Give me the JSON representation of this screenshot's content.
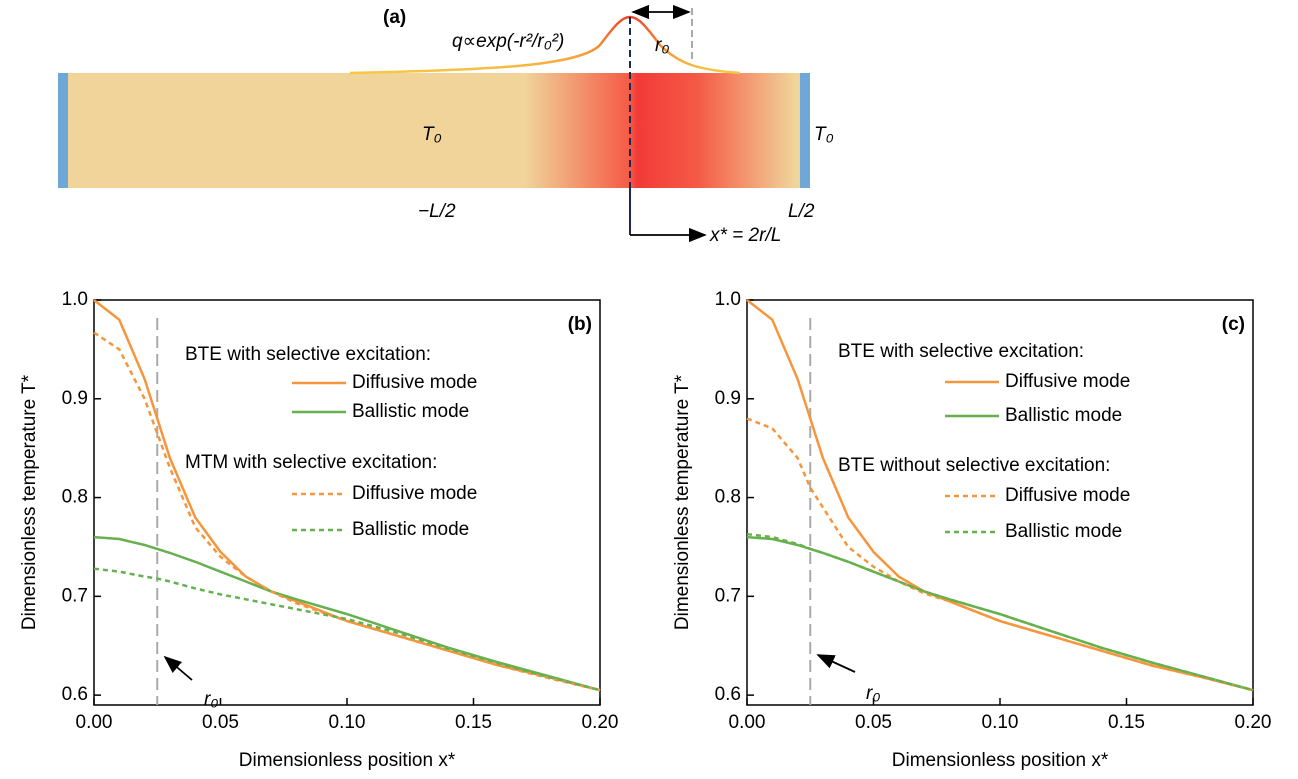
{
  "diagram": {
    "panel": "(a)",
    "heat_source": "q∝exp(-r²/r₀²)",
    "radius": "r₀",
    "left_temp": "T₀",
    "right_temp": "T₀",
    "left_end": "−L/2",
    "right_end": "L/2",
    "axis": "x* = 2r/L"
  },
  "chart_data": [
    {
      "type": "line",
      "panel": "(b)",
      "xlabel": "Dimensionless position x*",
      "ylabel": "Dimensionless temperature T*",
      "xlim": [
        0,
        0.2
      ],
      "ylim": [
        0.59,
        1.0
      ],
      "xticks": [
        {
          "value": 0,
          "label": "0.00"
        },
        0.05,
        {
          "value": 0.1,
          "label": "0.10"
        },
        0.15,
        {
          "value": 0.2,
          "label": "0.20"
        }
      ],
      "yticks": [
        0.6,
        0.7,
        0.8,
        0.9,
        {
          "value": 1,
          "label": "1.0"
        }
      ],
      "vline": {
        "x": 0.025,
        "label": "r₀"
      },
      "legend_headings": [
        "BTE with selective excitation:",
        "MTM with selective excitation:"
      ],
      "x": [
        0,
        0.01,
        0.02,
        0.025,
        0.03,
        0.04,
        0.05,
        0.06,
        0.07,
        0.08,
        0.1,
        0.12,
        0.14,
        0.16,
        0.18,
        0.2
      ],
      "series": [
        {
          "name": "Diffusive mode",
          "color": "#f5963c",
          "dash": false,
          "values": [
            1.0,
            0.98,
            0.92,
            0.88,
            0.84,
            0.78,
            0.745,
            0.72,
            0.705,
            0.695,
            0.675,
            0.66,
            0.645,
            0.63,
            0.618,
            0.605
          ]
        },
        {
          "name": "Ballistic mode",
          "color": "#66b04f",
          "dash": false,
          "values": [
            0.76,
            0.758,
            0.752,
            0.748,
            0.744,
            0.735,
            0.725,
            0.715,
            0.705,
            0.697,
            0.682,
            0.665,
            0.648,
            0.633,
            0.619,
            0.605
          ]
        },
        {
          "name": "Diffusive mode",
          "color": "#f5963c",
          "dash": true,
          "values": [
            0.967,
            0.95,
            0.9,
            0.865,
            0.83,
            0.77,
            0.74,
            0.72,
            0.705,
            0.693,
            0.675,
            0.66,
            0.645,
            0.63,
            0.617,
            0.605
          ]
        },
        {
          "name": "Ballistic mode",
          "color": "#66b04f",
          "dash": true,
          "values": [
            0.728,
            0.725,
            0.72,
            0.718,
            0.715,
            0.708,
            0.702,
            0.697,
            0.692,
            0.687,
            0.677,
            0.663,
            0.647,
            0.632,
            0.618,
            0.605
          ]
        }
      ]
    },
    {
      "type": "line",
      "panel": "(c)",
      "xlabel": "Dimensionless position x*",
      "ylabel": "Dimensionless temperature T*",
      "xlim": [
        0,
        0.2
      ],
      "ylim": [
        0.59,
        1.0
      ],
      "xticks": [
        {
          "value": 0,
          "label": "0.00"
        },
        0.05,
        {
          "value": 0.1,
          "label": "0.10"
        },
        0.15,
        {
          "value": 0.2,
          "label": "0.20"
        }
      ],
      "yticks": [
        0.6,
        0.7,
        0.8,
        0.9,
        {
          "value": 1,
          "label": "1.0"
        }
      ],
      "vline": {
        "x": 0.025,
        "label": "r₀"
      },
      "legend_headings": [
        "BTE with selective excitation:",
        "BTE without selective excitation:"
      ],
      "x": [
        0,
        0.01,
        0.02,
        0.025,
        0.03,
        0.04,
        0.05,
        0.06,
        0.07,
        0.08,
        0.1,
        0.12,
        0.14,
        0.16,
        0.18,
        0.2
      ],
      "series": [
        {
          "name": "Diffusive mode",
          "color": "#f5963c",
          "dash": false,
          "values": [
            1.0,
            0.98,
            0.92,
            0.88,
            0.84,
            0.78,
            0.745,
            0.72,
            0.705,
            0.695,
            0.675,
            0.66,
            0.645,
            0.63,
            0.618,
            0.605
          ]
        },
        {
          "name": "Ballistic mode",
          "color": "#66b04f",
          "dash": false,
          "values": [
            0.76,
            0.758,
            0.752,
            0.748,
            0.744,
            0.735,
            0.725,
            0.715,
            0.705,
            0.697,
            0.682,
            0.665,
            0.648,
            0.633,
            0.619,
            0.605
          ]
        },
        {
          "name": "Diffusive mode",
          "color": "#f5963c",
          "dash": true,
          "values": [
            0.88,
            0.87,
            0.84,
            0.81,
            0.79,
            0.75,
            0.73,
            0.715,
            0.703,
            0.695,
            0.675,
            0.66,
            0.645,
            0.63,
            0.618,
            0.605
          ]
        },
        {
          "name": "Ballistic mode",
          "color": "#66b04f",
          "dash": true,
          "values": [
            0.763,
            0.76,
            0.753,
            0.748,
            0.744,
            0.735,
            0.725,
            0.715,
            0.705,
            0.697,
            0.682,
            0.665,
            0.648,
            0.633,
            0.619,
            0.605
          ]
        }
      ]
    }
  ]
}
